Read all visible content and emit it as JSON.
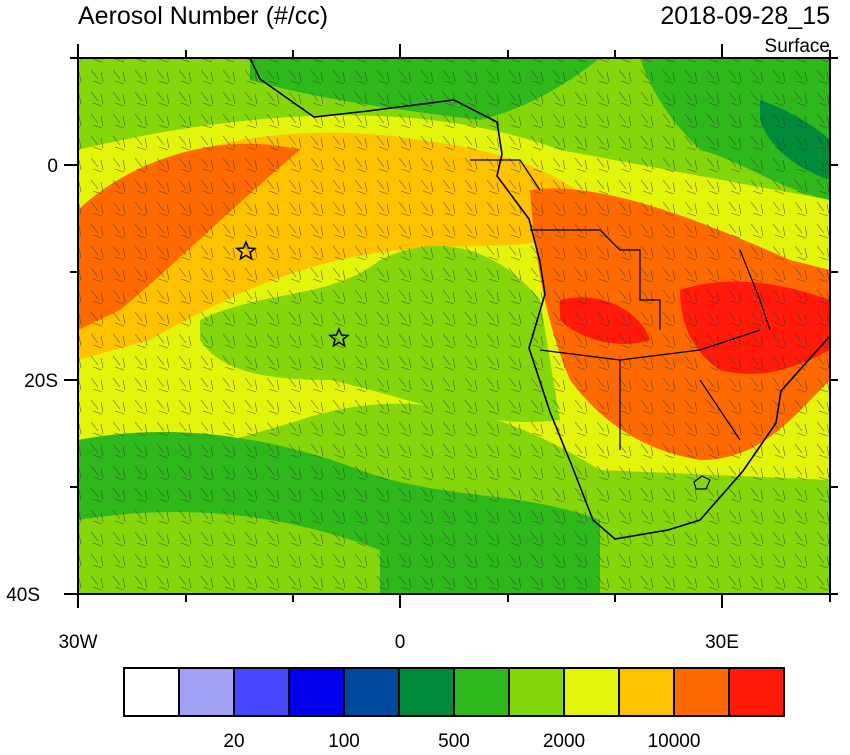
{
  "title": "Aerosol Number (#/cc)",
  "time": "2018-09-28_15",
  "level": "Surface",
  "map": {
    "lat_labels": [
      "0",
      "20S",
      "40S"
    ],
    "lon_labels": [
      "30W",
      "0",
      "30E"
    ]
  },
  "colorbar": {
    "colors": [
      "#ffffff",
      "#a0a0f5",
      "#4646ff",
      "#0000ee",
      "#00489c",
      "#008a3c",
      "#2eb81c",
      "#86d60c",
      "#e4f50c",
      "#ffc200",
      "#ff6a00",
      "#ff1a0a"
    ],
    "labels": [
      "20",
      "100",
      "500",
      "2000",
      "10000"
    ]
  }
}
